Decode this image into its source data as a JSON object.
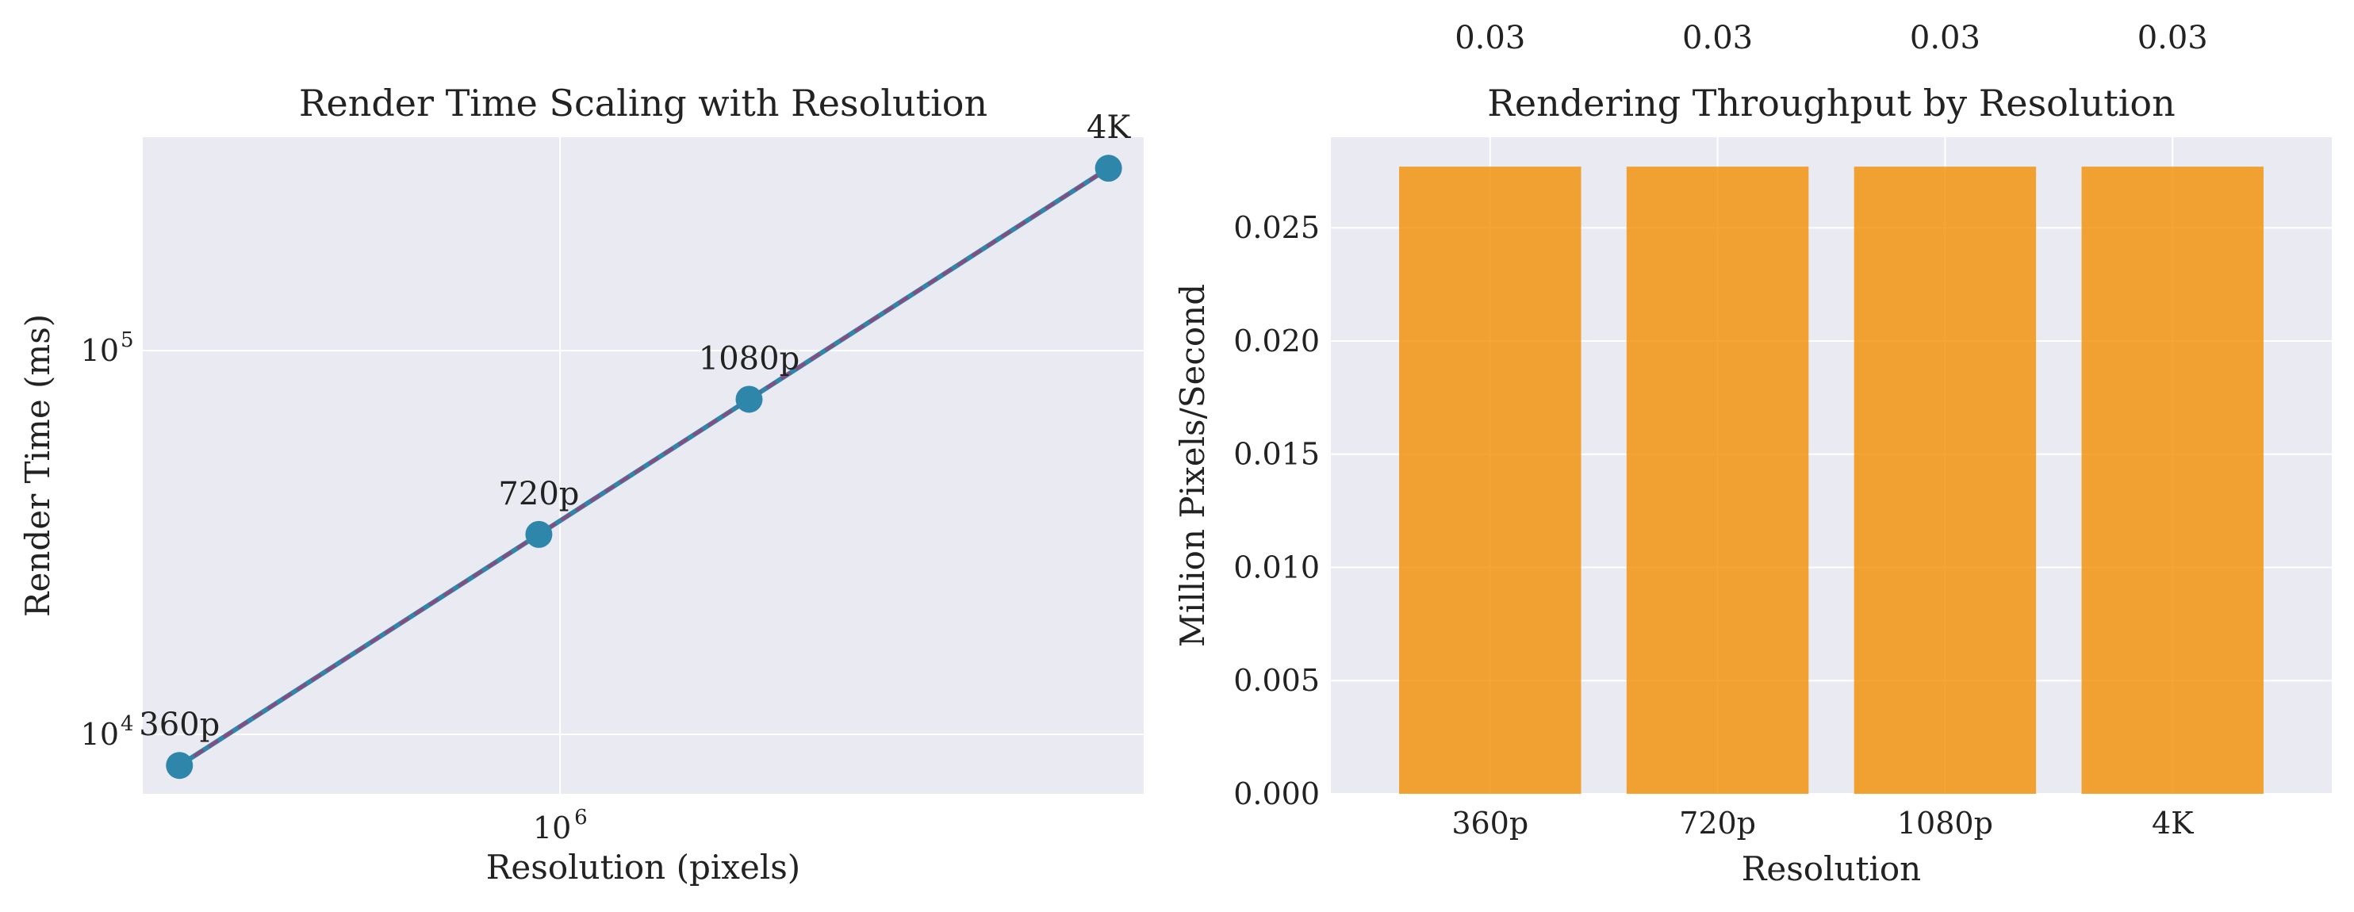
{
  "chart_data": [
    {
      "type": "line",
      "title": "Render Time Scaling with Resolution",
      "xlabel": "Resolution (pixels)",
      "ylabel": "Render Time (ms)",
      "xscale": "log",
      "yscale": "log",
      "xlim": [
        200000,
        9500000
      ],
      "ylim": [
        7000,
        360000
      ],
      "x_ticks": [
        {
          "value": 1000000,
          "base": "10",
          "exp": "6"
        }
      ],
      "y_ticks": [
        {
          "value": 10000,
          "base": "10",
          "exp": "4"
        },
        {
          "value": 100000,
          "base": "10",
          "exp": "5"
        }
      ],
      "grid": true,
      "points": [
        {
          "label": "360p",
          "x": 230400,
          "y": 8300
        },
        {
          "label": "720p",
          "x": 921600,
          "y": 33200
        },
        {
          "label": "1080p",
          "x": 2073600,
          "y": 74700
        },
        {
          "label": "4K",
          "x": 8294400,
          "y": 298800
        }
      ],
      "colors": {
        "marker": "#2e86ab",
        "line": "#2e86ab",
        "overlay": "#a23b72"
      }
    },
    {
      "type": "bar",
      "title": "Rendering Throughput by Resolution",
      "xlabel": "Resolution",
      "ylabel": "Million Pixels/Second",
      "categories": [
        "360p",
        "720p",
        "1080p",
        "4K"
      ],
      "values": [
        0.0277,
        0.0277,
        0.0277,
        0.0277
      ],
      "value_labels": [
        "0.03",
        "0.03",
        "0.03",
        "0.03"
      ],
      "ylim": [
        0,
        0.029
      ],
      "y_ticks": [
        "0.000",
        "0.005",
        "0.010",
        "0.015",
        "0.020",
        "0.025"
      ],
      "grid": true,
      "colors": {
        "bar": "#f18f01"
      }
    }
  ]
}
